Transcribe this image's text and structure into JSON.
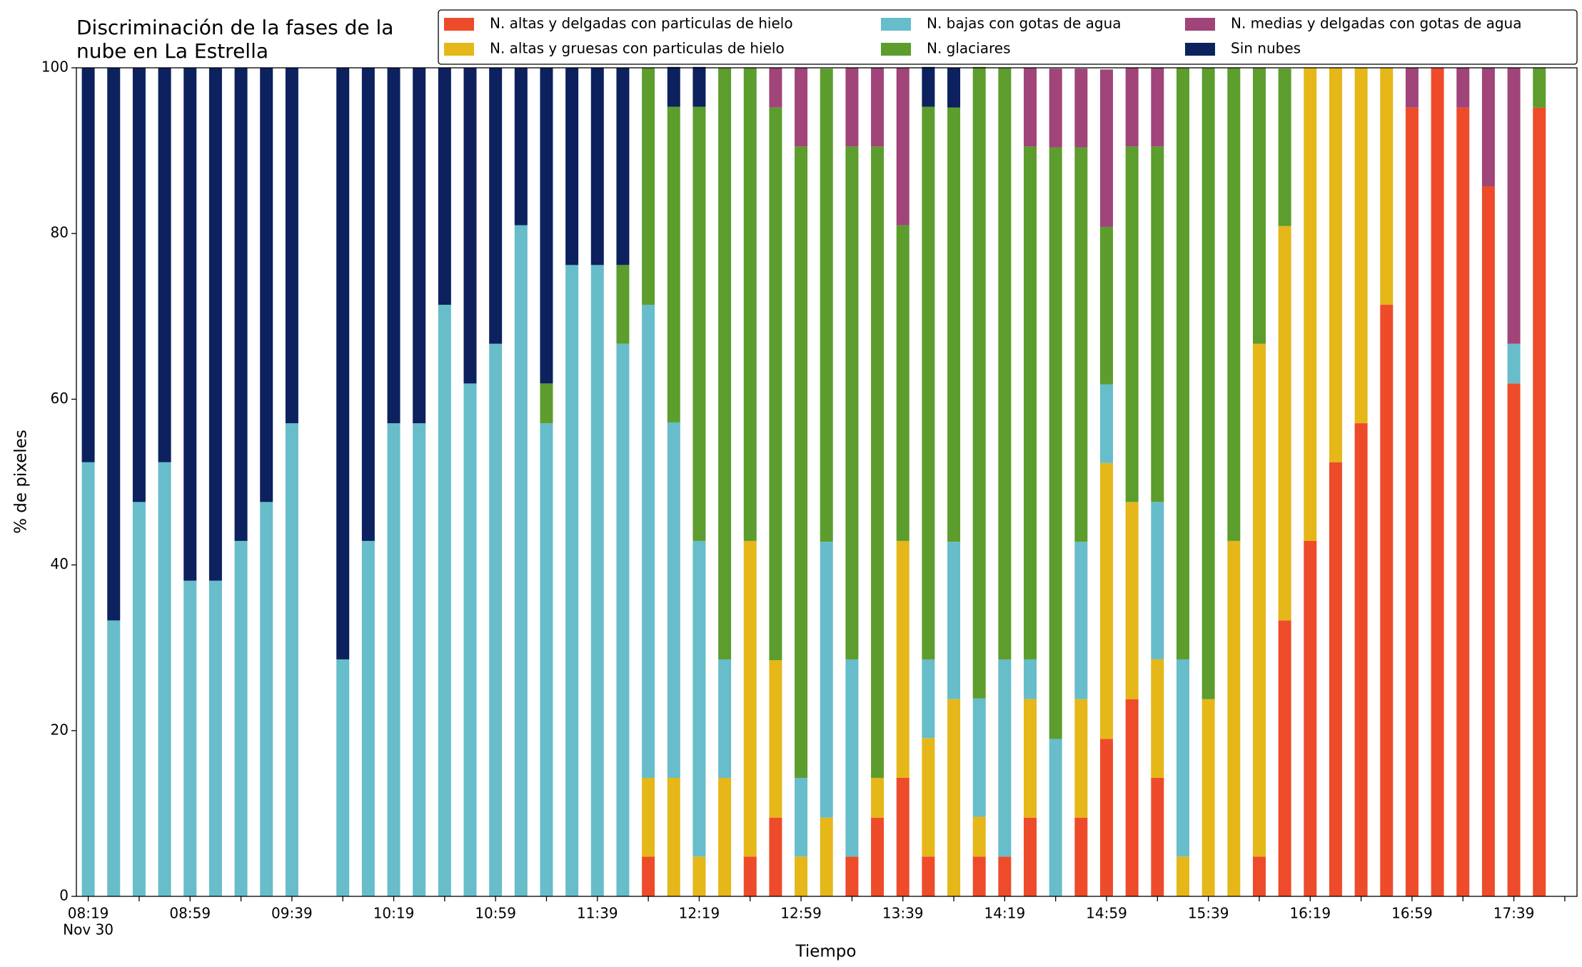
{
  "chart_data": {
    "type": "stacked_bar",
    "title": [
      "Discriminación de la fases de la",
      "nube en La Estrella"
    ],
    "xlabel": "Tiempo",
    "ylabel": "% de pixeles",
    "x_date_label": "Nov 30",
    "categories": [
      "08:19",
      null,
      null,
      null,
      "08:59",
      null,
      null,
      null,
      "09:39",
      null,
      null,
      null,
      "10:19",
      null,
      null,
      null,
      "10:59",
      null,
      null,
      null,
      "11:39",
      null,
      null,
      null,
      "12:19",
      null,
      null,
      null,
      "12:59",
      null,
      null,
      null,
      "13:39",
      null,
      null,
      null,
      "14:19",
      null,
      null,
      null,
      "14:59",
      null,
      null,
      null,
      "15:39",
      null,
      null,
      null,
      "16:19",
      null,
      null,
      null,
      "16:59",
      null,
      null,
      null,
      "17:39",
      null
    ],
    "ylim": [
      0,
      100
    ],
    "yticks": [
      0,
      20,
      40,
      60,
      80,
      100
    ],
    "series": [
      {
        "name": "N. altas y delgadas con particulas de hielo",
        "color": "#ee4b2b",
        "values": [
          null,
          null,
          null,
          null,
          null,
          null,
          null,
          null,
          null,
          null,
          null,
          null,
          null,
          null,
          null,
          null,
          null,
          null,
          null,
          null,
          null,
          null,
          4.8,
          null,
          null,
          null,
          4.8,
          9.5,
          null,
          null,
          4.8,
          9.5,
          14.3,
          4.8,
          null,
          4.8,
          4.8,
          9.5,
          null,
          9.5,
          19.0,
          23.8,
          14.3,
          null,
          null,
          null,
          4.8,
          33.3,
          42.9,
          52.4,
          57.1,
          71.4,
          95.2,
          100,
          95.2,
          85.7,
          61.9,
          95.2
        ]
      },
      {
        "name": "N. altas y gruesas con particulas de hielo",
        "color": "#e5b718",
        "values": [
          null,
          null,
          null,
          null,
          null,
          null,
          null,
          null,
          null,
          null,
          null,
          null,
          null,
          null,
          null,
          null,
          null,
          null,
          null,
          null,
          null,
          null,
          9.5,
          14.3,
          4.8,
          14.3,
          38.1,
          19.0,
          4.8,
          9.5,
          null,
          4.8,
          28.6,
          14.3,
          23.8,
          4.8,
          null,
          14.3,
          null,
          14.3,
          33.3,
          23.8,
          14.3,
          4.8,
          23.8,
          42.9,
          61.9,
          47.6,
          57.1,
          47.6,
          42.9,
          28.6,
          null,
          null,
          null,
          null,
          null,
          null
        ]
      },
      {
        "name": "N. bajas con gotas de agua",
        "color": "#67bdc9",
        "values": [
          52.4,
          33.3,
          47.6,
          52.4,
          38.1,
          38.1,
          42.9,
          47.6,
          57.1,
          null,
          28.6,
          42.9,
          57.1,
          57.1,
          71.4,
          61.9,
          66.7,
          81.0,
          57.1,
          76.2,
          76.2,
          66.7,
          57.1,
          42.9,
          38.1,
          14.3,
          null,
          null,
          9.5,
          33.3,
          23.8,
          null,
          null,
          9.5,
          19.0,
          14.3,
          23.8,
          4.8,
          19.0,
          19.0,
          9.5,
          null,
          19.0,
          23.8,
          null,
          null,
          null,
          null,
          null,
          null,
          null,
          null,
          null,
          null,
          null,
          null,
          4.8,
          null
        ]
      },
      {
        "name": "N. glaciares",
        "color": "#5c9d2d",
        "values": [
          null,
          null,
          null,
          null,
          null,
          null,
          null,
          null,
          null,
          null,
          null,
          null,
          null,
          null,
          null,
          null,
          null,
          null,
          4.8,
          null,
          null,
          9.5,
          28.6,
          38.1,
          52.4,
          71.4,
          57.1,
          66.7,
          76.2,
          57.1,
          61.9,
          76.2,
          38.1,
          66.7,
          52.4,
          76.2,
          71.4,
          61.9,
          71.4,
          47.6,
          19.0,
          42.9,
          42.9,
          71.4,
          76.2,
          57.1,
          33.3,
          19.0,
          null,
          null,
          null,
          null,
          null,
          null,
          null,
          null,
          null,
          4.8
        ]
      },
      {
        "name": "N. medias y delgadas con gotas de agua",
        "color": "#a0447a",
        "values": [
          null,
          null,
          null,
          null,
          null,
          null,
          null,
          null,
          null,
          null,
          null,
          null,
          null,
          null,
          null,
          null,
          null,
          null,
          null,
          null,
          null,
          null,
          null,
          null,
          null,
          null,
          null,
          4.8,
          9.5,
          null,
          9.5,
          9.5,
          19.0,
          null,
          null,
          null,
          null,
          9.5,
          9.5,
          9.5,
          19.0,
          9.5,
          9.5,
          null,
          null,
          null,
          null,
          null,
          null,
          null,
          null,
          null,
          4.8,
          null,
          4.8,
          14.3,
          33.3,
          null
        ]
      },
      {
        "name": "Sin nubes",
        "color": "#0c215e",
        "values": [
          47.6,
          66.7,
          52.4,
          47.6,
          61.9,
          61.9,
          57.1,
          52.4,
          42.9,
          null,
          71.4,
          57.1,
          42.9,
          42.9,
          28.6,
          38.1,
          33.3,
          19.0,
          38.1,
          23.8,
          23.8,
          23.8,
          null,
          4.8,
          4.8,
          null,
          null,
          null,
          null,
          null,
          null,
          null,
          null,
          4.8,
          4.8,
          null,
          null,
          null,
          null,
          null,
          null,
          null,
          null,
          null,
          null,
          null,
          null,
          null,
          null,
          null,
          null,
          null,
          null,
          null,
          null,
          null,
          null,
          null
        ]
      }
    ]
  }
}
